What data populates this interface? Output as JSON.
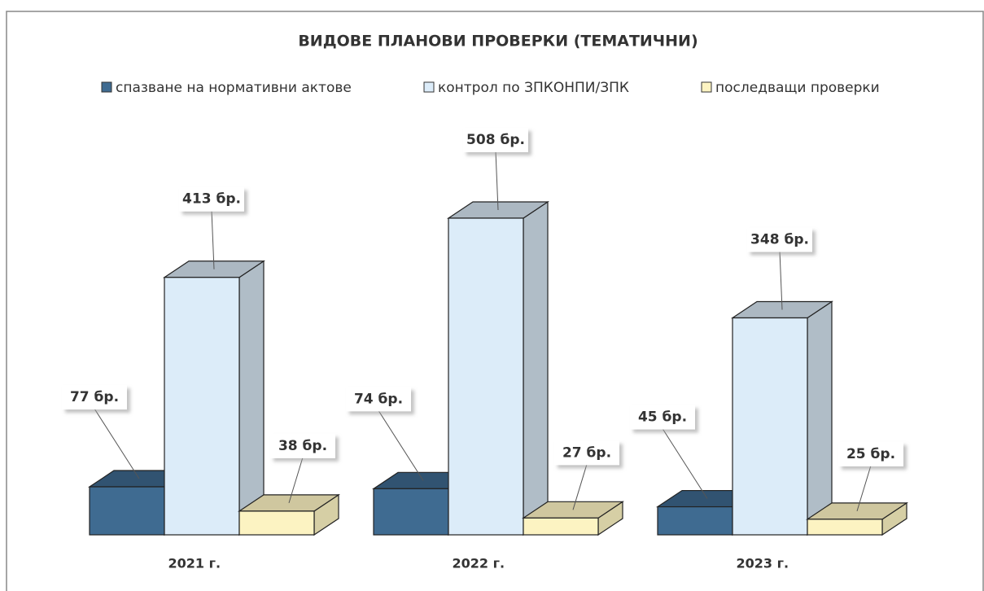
{
  "chart_data": {
    "type": "bar3d",
    "title": "ВИДОВЕ ПЛАНОВИ ПРОВЕРКИ (ТЕМАТИЧНИ)",
    "categories": [
      "2021 г.",
      "2022 г.",
      "2023 г."
    ],
    "series": [
      {
        "name": "спазване на нормативни актове",
        "color": "#3f6b91",
        "values": [
          77,
          74,
          45
        ],
        "value_labels": [
          "77 бр.",
          "74 бр.",
          "45 бр."
        ]
      },
      {
        "name": "контрол по ЗПКОНПИ/ЗПК",
        "color": "#dcecf9",
        "values": [
          413,
          508,
          348
        ],
        "value_labels": [
          "413 бр.",
          "508 бр.",
          "348 бр."
        ]
      },
      {
        "name": "последващи проверки",
        "color": "#fcf3c2",
        "values": [
          38,
          27,
          25
        ],
        "value_labels": [
          "38 бр.",
          "27 бр.",
          "25 бр."
        ]
      }
    ]
  }
}
